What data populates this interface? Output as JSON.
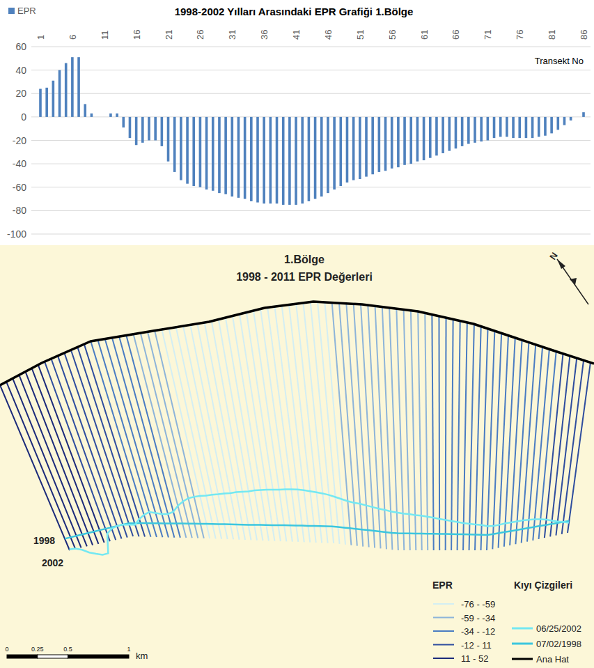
{
  "chart_data": {
    "type": "bar",
    "title": "1998-2002 Yılları Arasındaki EPR Grafiği 1.Bölge",
    "annotation": "Transekt No",
    "categories": [
      "1",
      null,
      null,
      null,
      null,
      "6",
      null,
      null,
      null,
      null,
      "11",
      null,
      null,
      null,
      null,
      "16",
      null,
      null,
      null,
      null,
      "21",
      null,
      null,
      null,
      null,
      "26",
      null,
      null,
      null,
      null,
      "31",
      null,
      null,
      null,
      null,
      "36",
      null,
      null,
      null,
      null,
      "41",
      null,
      null,
      null,
      null,
      "46",
      null,
      null,
      null,
      null,
      "51",
      null,
      null,
      null,
      null,
      "56",
      null,
      null,
      null,
      null,
      "61",
      null,
      null,
      null,
      null,
      "66",
      null,
      null,
      null,
      null,
      "71",
      null,
      null,
      null,
      null,
      "76",
      null,
      null,
      null,
      null,
      "81",
      null,
      null,
      null,
      null,
      "86"
    ],
    "series": [
      {
        "name": "EPR",
        "color": "#4f81bd",
        "values": [
          24,
          25,
          31,
          40,
          46,
          51,
          51,
          11,
          3,
          0,
          0,
          3,
          3,
          -9,
          -18,
          -24,
          -22,
          -20,
          -20,
          -25,
          -38,
          -47,
          -54,
          -57,
          -59,
          -60,
          -62,
          -63,
          -65,
          -66,
          -68,
          -69,
          -70,
          -72,
          -73,
          -74,
          -74,
          -74,
          -75,
          -75,
          -75,
          -74,
          -72,
          -70,
          -68,
          -65,
          -62,
          -59,
          -56,
          -54,
          -53,
          -51,
          -49,
          -47,
          -46,
          -44,
          -43,
          -41,
          -40,
          -38,
          -37,
          -35,
          -33,
          -31,
          -29,
          -27,
          -25,
          -23,
          -22,
          -21,
          -20,
          -18,
          -17,
          -17,
          -18,
          -18,
          -18,
          -18,
          -17,
          -16,
          -14,
          -11,
          -7,
          -3,
          0,
          4
        ]
      }
    ],
    "ylim": [
      -100,
      60
    ],
    "yticks": [
      -100,
      -80,
      -60,
      -40,
      -20,
      0,
      20,
      40,
      60
    ],
    "grid": true,
    "legend": "top-left"
  },
  "map": {
    "title": "1.Bölge",
    "subtitle": "1998 - 2011 EPR Değerleri",
    "north": "N",
    "legend_title": "EPR",
    "classes": [
      {
        "min": -76,
        "max": -59,
        "label": "-76 - -59",
        "color": "#d3eef3"
      },
      {
        "min": -59,
        "max": -34,
        "label": "-59 - -34",
        "color": "#8db4d9"
      },
      {
        "min": -34,
        "max": -12,
        "label": "-34 - -12",
        "color": "#4a7cc2"
      },
      {
        "min": -12,
        "max": 11,
        "label": "-12 - 11",
        "color": "#2e4d9e"
      },
      {
        "min": 11,
        "max": 52,
        "label": "11 - 52",
        "color": "#1b2a7a"
      }
    ],
    "shoreline_title": "Kıyı Çizgileri",
    "shorelines": [
      {
        "label": "06/25/2002",
        "color": "#74e8f2",
        "map_label": "2002"
      },
      {
        "label": "07/02/1998",
        "color": "#3cc6de",
        "map_label": "1998"
      }
    ],
    "baseline": {
      "label": "Ana Hat",
      "color": "#000000"
    },
    "scale": {
      "ticks": [
        0,
        0.25,
        0.5,
        1
      ],
      "unit": "km"
    }
  }
}
